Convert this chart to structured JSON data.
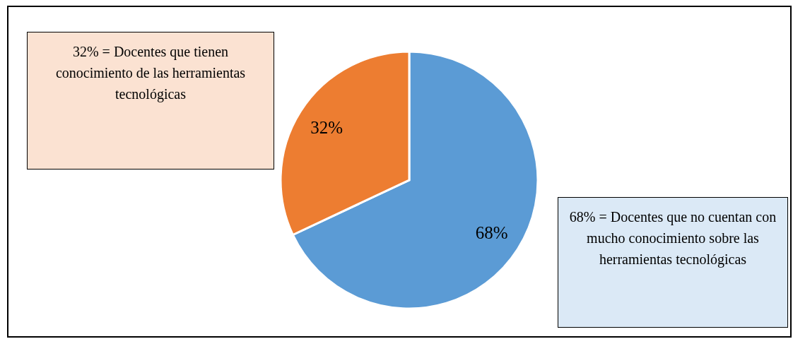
{
  "chart_data": {
    "type": "pie",
    "categories": [
      "68% = Docentes que no cuentan con mucho conocimiento sobre las herramientas tecnológicas",
      "32% = Docentes que tienen conocimiento de las herramientas tecnológicas"
    ],
    "values": [
      68,
      32
    ],
    "colors": [
      "#5b9bd5",
      "#ed7d31"
    ],
    "value_labels": [
      "68%",
      "32%"
    ]
  }
}
